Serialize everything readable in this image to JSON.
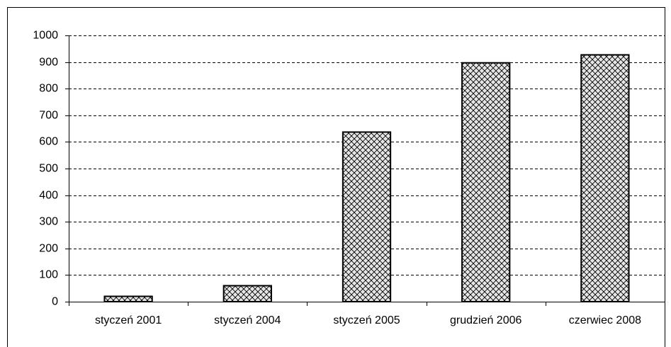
{
  "chart_data": {
    "type": "bar",
    "categories": [
      "styczeń 2001",
      "styczeń 2004",
      "styczeń 2005",
      "grudzień 2006",
      "czerwiec 2008"
    ],
    "values": [
      20,
      60,
      637,
      897,
      927
    ],
    "ylim": [
      0,
      1000
    ],
    "yticks": [
      0,
      100,
      200,
      300,
      400,
      500,
      600,
      700,
      800,
      900,
      1000
    ],
    "grid": true
  }
}
